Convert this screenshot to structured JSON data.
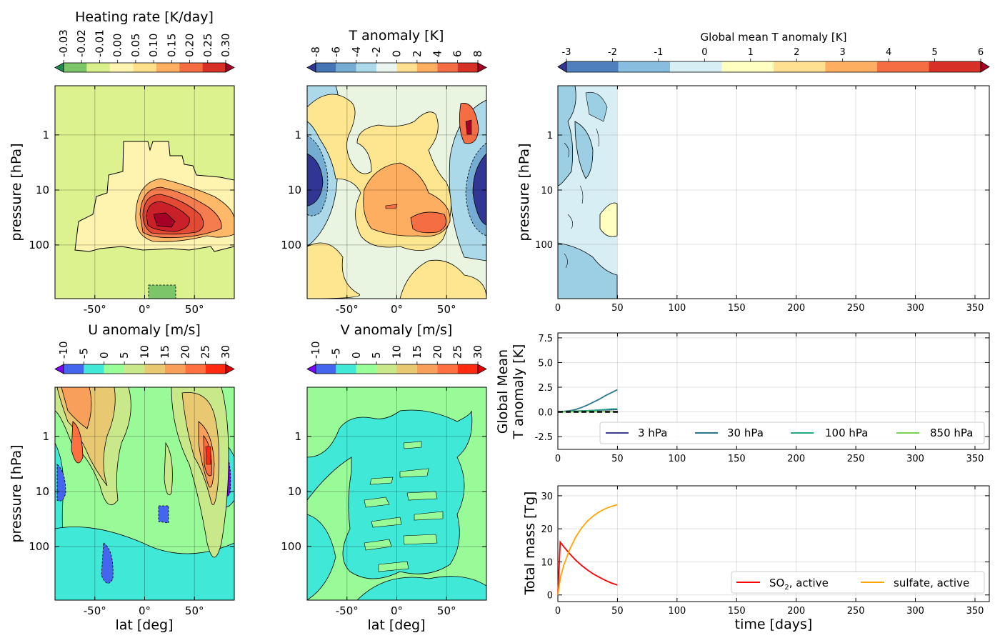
{
  "colors": {
    "heating": [
      "#1a8c4e",
      "#7cc568",
      "#d9ef8b",
      "#fff5b0",
      "#fee08b",
      "#fdae61",
      "#f46d43",
      "#d73027",
      "#a50026"
    ],
    "temp": [
      "#313695",
      "#4575b4",
      "#74add1",
      "#abd9e9",
      "#e9f5ee",
      "#fee090",
      "#fdae61",
      "#f46d43",
      "#d73027",
      "#a50026"
    ],
    "globalT": [
      "#313695",
      "#4f80bd",
      "#89bde0",
      "#d7eef5",
      "#ffffbf",
      "#fee090",
      "#fdae61",
      "#f46d43",
      "#d73027",
      "#a50026"
    ],
    "wind": [
      "#7f00ff",
      "#4466ee",
      "#40e8d8",
      "#98ff98",
      "#c8e88a",
      "#e8c870",
      "#f8a05a",
      "#ff7040",
      "#ff2a10",
      "#e00000"
    ],
    "series": {
      "p3": "#3b3b8f",
      "p30": "#2a788e",
      "p100": "#22a884",
      "p850": "#7ad151",
      "so2": "#ff0000",
      "sulfate": "#ffa500",
      "zero": "#000000"
    }
  },
  "panels": {
    "heating": {
      "title": "Heating  rate [K/day]",
      "ticks": [
        "-0.03",
        "-0.02",
        "-0.01",
        "0.00",
        "0.05",
        "0.10",
        "0.15",
        "0.20",
        "0.25",
        "0.30"
      ],
      "ylabel": "pressure  [hPa]",
      "xticks": [
        "-50°",
        "0°",
        "50°"
      ],
      "yticks": [
        "1",
        "10",
        "100"
      ]
    },
    "tanom": {
      "title": "T anomaly [K]",
      "ticks": [
        "-8",
        "-6",
        "-4",
        "-2",
        "0",
        "2",
        "4",
        "6",
        "8"
      ],
      "xticks": [
        "-50°",
        "0°",
        "50°"
      ],
      "yticks": [
        "1",
        "10",
        "100"
      ]
    },
    "uanom": {
      "title": "U anomaly [m/s]",
      "ticks": [
        "-10",
        "-5",
        "0",
        "5",
        "10",
        "15",
        "20",
        "25",
        "30"
      ],
      "ylabel": "pressure  [hPa]",
      "xlabel": "lat [deg]",
      "xticks": [
        "-50°",
        "0°",
        "50°"
      ],
      "yticks": [
        "1",
        "10",
        "100"
      ]
    },
    "vanom": {
      "title": "V anomaly [m/s]",
      "ticks": [
        "-10",
        "-5",
        "0",
        "5",
        "10",
        "15",
        "20",
        "25",
        "30"
      ],
      "xlabel": "lat [deg]",
      "xticks": [
        "-50°",
        "0°",
        "50°"
      ],
      "yticks": [
        "1",
        "10",
        "100"
      ]
    },
    "globalT": {
      "title": "Global mean T anomaly [K]",
      "ticks": [
        "-3",
        "-2",
        "-1",
        "0",
        "1",
        "2",
        "3",
        "4",
        "5",
        "6"
      ],
      "ylabel": "pressure  [hPa]",
      "yticks": [
        "1",
        "10",
        "100"
      ],
      "xticks": [
        "0",
        "50",
        "100",
        "150",
        "200",
        "250",
        "300",
        "350"
      ]
    },
    "series": {
      "ylabel1": "Global Mean",
      "ylabel2": "T anomaly [K]",
      "yticks": [
        "7.5",
        "5.0",
        "2.5",
        "0.0",
        "-2.5"
      ],
      "xticks": [
        "0",
        "50",
        "100",
        "150",
        "200",
        "250",
        "300",
        "350"
      ],
      "legend": [
        "3 hPa",
        "30 hPa",
        "100 hPa",
        "850 hPa"
      ]
    },
    "mass": {
      "ylabel": "Total mass [Tg]",
      "xlabel": "time [days]",
      "yticks": [
        "30",
        "20",
        "10",
        "0"
      ],
      "xticks": [
        "0",
        "50",
        "100",
        "150",
        "200",
        "250",
        "300",
        "350"
      ],
      "legend_so2": "SO",
      "legend_so2_sub": "2",
      "legend_so2_rest": ", active",
      "legend_sulfate": "sulfate, active"
    }
  },
  "chart_data": [
    {
      "type": "line",
      "title": "",
      "xlabel": "",
      "ylabel": "Global Mean T anomaly [K]",
      "xlim": [
        0,
        362
      ],
      "ylim": [
        -3.8,
        8
      ],
      "series": [
        {
          "name": "3 hPa",
          "x": [
            0,
            5,
            10,
            15,
            20,
            25,
            30,
            35,
            40,
            45,
            50
          ],
          "y": [
            0,
            0.02,
            0.05,
            0.08,
            0.1,
            0.12,
            0.15,
            0.18,
            0.2,
            0.22,
            0.25
          ]
        },
        {
          "name": "30 hPa",
          "x": [
            0,
            5,
            10,
            15,
            20,
            25,
            30,
            35,
            40,
            45,
            50
          ],
          "y": [
            0,
            0.05,
            0.12,
            0.25,
            0.45,
            0.7,
            1.0,
            1.3,
            1.65,
            1.95,
            2.25
          ]
        },
        {
          "name": "100 hPa",
          "x": [
            0,
            5,
            10,
            15,
            20,
            25,
            30,
            35,
            40,
            45,
            50
          ],
          "y": [
            0,
            0.03,
            0.05,
            0.08,
            0.1,
            0.12,
            0.15,
            0.2,
            0.25,
            0.3,
            0.3
          ]
        },
        {
          "name": "850 hPa",
          "x": [
            0,
            5,
            10,
            15,
            20,
            25,
            30,
            35,
            40,
            45,
            50
          ],
          "y": [
            0,
            0,
            0.01,
            0.01,
            0.01,
            0.02,
            0.02,
            0.02,
            0.03,
            0.03,
            0.03
          ]
        }
      ]
    },
    {
      "type": "line",
      "title": "",
      "xlabel": "time [days]",
      "ylabel": "Total mass [Tg]",
      "xlim": [
        0,
        362
      ],
      "ylim": [
        -2,
        33
      ],
      "series": [
        {
          "name": "SO2, active",
          "x": [
            0,
            2,
            5,
            10,
            15,
            20,
            25,
            30,
            35,
            40,
            45,
            50
          ],
          "y": [
            0,
            16,
            14.6,
            12.4,
            10.5,
            8.9,
            7.5,
            6.3,
            5.3,
            4.4,
            3.6,
            3.0
          ]
        },
        {
          "name": "sulfate, active",
          "x": [
            0,
            2,
            5,
            10,
            15,
            20,
            25,
            30,
            35,
            40,
            45,
            50
          ],
          "y": [
            0,
            5,
            9,
            13.8,
            17.5,
            20.3,
            22.4,
            24,
            25.2,
            26.1,
            26.8,
            27.3
          ]
        }
      ]
    }
  ]
}
